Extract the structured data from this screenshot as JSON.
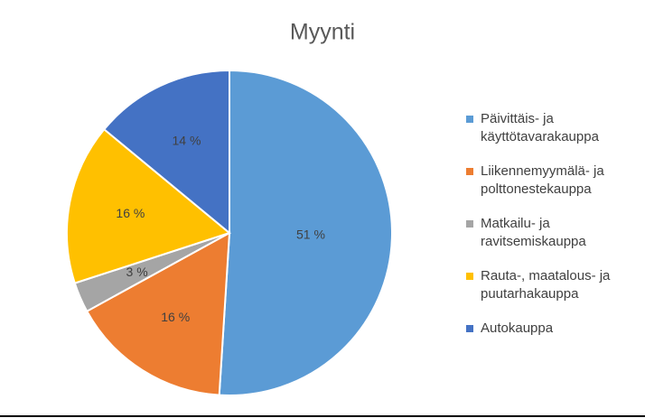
{
  "chart_data": {
    "type": "pie",
    "title": "Myynti",
    "categories": [
      "Päivittäis- ja käyttötavarakauppa",
      "Liikennemyymälä- ja polttonestekauppa",
      "Matkailu- ja ravitsemiskauppa",
      "Rauta-, maatalous- ja puutarhakauppa",
      "Autokauppa"
    ],
    "values": [
      51,
      16,
      3,
      16,
      14
    ],
    "value_labels": [
      "51 %",
      "16 %",
      "3 %",
      "16 %",
      "14 %"
    ],
    "colors": [
      "#5b9bd5",
      "#ed7d31",
      "#a5a5a5",
      "#ffc000",
      "#4472c4"
    ],
    "legend": "right"
  }
}
